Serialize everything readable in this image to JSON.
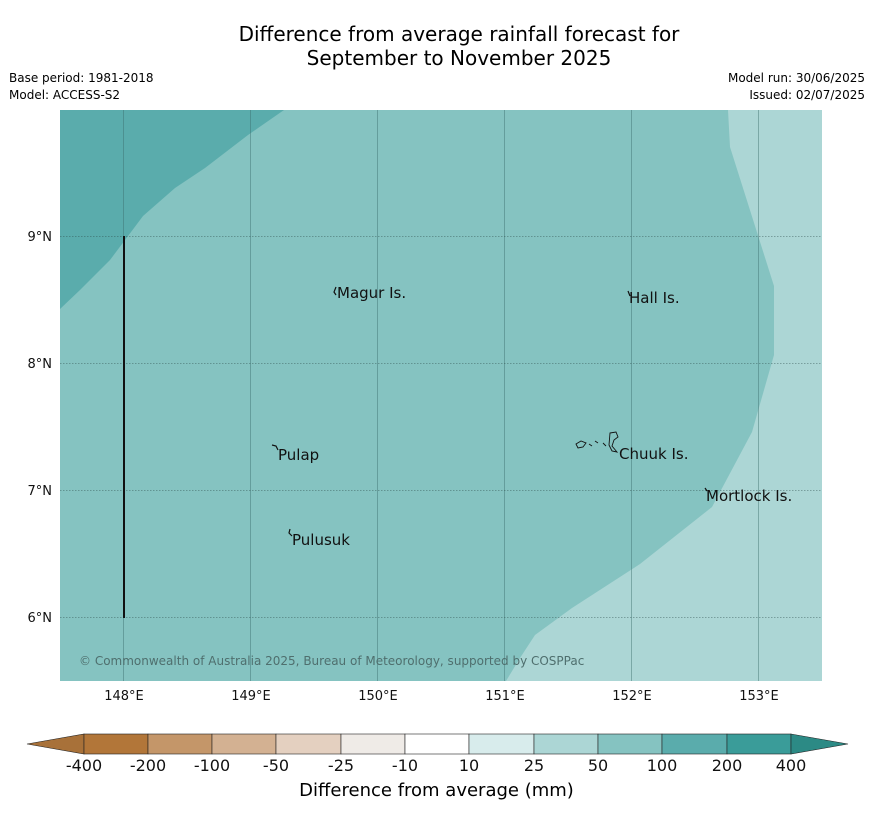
{
  "header": {
    "title_line1": "Difference from average rainfall forecast for",
    "title_line2": "September to November 2025",
    "base_period": "Base period: 1981-2018",
    "model": "Model: ACCESS-S2",
    "model_run": "Model run: 30/06/2025",
    "issued": "Issued: 02/07/2025"
  },
  "map": {
    "lon_ticks": [
      "148°E",
      "149°E",
      "150°E",
      "151°E",
      "152°E",
      "153°E"
    ],
    "lat_ticks": [
      "9°N",
      "8°N",
      "7°N",
      "6°N"
    ],
    "places": {
      "magur": "Magur Is.",
      "hall": "Hall Is.",
      "pulap": "Pulap",
      "chuuk": "Chuuk Is.",
      "mortlock": "Mortlock Is.",
      "pulusuk": "Pulusuk"
    },
    "copyright": "© Commonwealth of Australia 2025, Bureau of Meteorology, supported by COSPPac",
    "colors": {
      "class_100_200": "#5aacac",
      "class_50_100": "#85c3c1",
      "class_25_50": "#acd6d5"
    }
  },
  "legend": {
    "title": "Difference from average (mm)",
    "ticks": [
      "-400",
      "-200",
      "-100",
      "-50",
      "-25",
      "-10",
      "10",
      "25",
      "50",
      "100",
      "200",
      "400"
    ],
    "colors": [
      "#a87139",
      "#b27639",
      "#c49669",
      "#d3b192",
      "#e4d0c0",
      "#efebe7",
      "#ffffff",
      "#d8ecec",
      "#acd6d5",
      "#85c3c1",
      "#5aacac",
      "#3a9c99",
      "#2c8a85"
    ]
  }
}
